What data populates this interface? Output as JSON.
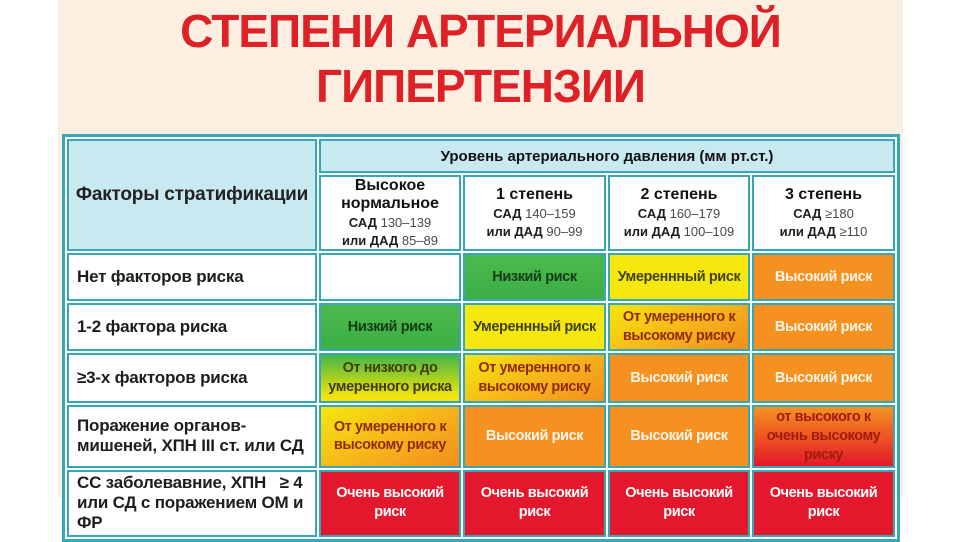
{
  "title": {
    "line1": "СТЕПЕНИ АРТЕРИАЛЬНОЙ",
    "line2": "ГИПЕРТЕНЗИИ",
    "color": "#dd2126"
  },
  "table": {
    "corner_header": "Факторы стратификации",
    "top_header": "Уровень артериального давления (мм рт.ст.)",
    "columns": [
      {
        "title": "Высокое нормальное",
        "sad_label": "САД",
        "sad_value": "130–139",
        "dad_label": "или ДАД",
        "dad_value": "85–89"
      },
      {
        "title": "1 степень",
        "sad_label": "САД",
        "sad_value": "140–159",
        "dad_label": "или ДАД",
        "dad_value": "90–99"
      },
      {
        "title": "2 степень",
        "sad_label": "САД",
        "sad_value": "160–179",
        "dad_label": "или ДАД",
        "dad_value": "100–109"
      },
      {
        "title": "3 степень",
        "sad_label": "САД",
        "sad_value": "≥180",
        "dad_label": "или ДАД",
        "dad_value": "≥110"
      }
    ],
    "rows": [
      {
        "label": "Нет факторов риска",
        "cells": [
          {
            "text": "",
            "style": "empty"
          },
          {
            "text": "Низкий риск",
            "style": "green"
          },
          {
            "text": "Умереннный риск",
            "style": "yellow"
          },
          {
            "text": "Высокий риск",
            "style": "orange"
          }
        ]
      },
      {
        "label": "1-2 фактора риска",
        "cells": [
          {
            "text": "Низкий риск",
            "style": "green"
          },
          {
            "text": "Умереннный риск",
            "style": "yellow"
          },
          {
            "text": "От умеренного к высокому риску",
            "style": "yellow-orange"
          },
          {
            "text": "Высокий риск",
            "style": "orange"
          }
        ]
      },
      {
        "label": "≥3-х факторов риска",
        "cells": [
          {
            "text": "От низкого до умеренного риска",
            "style": "green-yellow"
          },
          {
            "text": "От умеренного к высокому риску",
            "style": "yellow-orange"
          },
          {
            "text": "Высокий риск",
            "style": "orange"
          },
          {
            "text": "Высокий риск",
            "style": "orange"
          }
        ]
      },
      {
        "label": "Поражение органов-мишеней, ХПН III ст. или СД",
        "cells": [
          {
            "text": "От умеренного к высокому риску",
            "style": "yellow-orange"
          },
          {
            "text": "Высокий риск",
            "style": "orange"
          },
          {
            "text": "Высокий риск",
            "style": "orange"
          },
          {
            "text": "от высокого к очень высокому риску",
            "style": "orange-red"
          }
        ]
      },
      {
        "label": "СС заболевавние, ХПН   ≥ 4 или СД с поражением ОМ и ФР",
        "cells": [
          {
            "text": "Очень высокий риск",
            "style": "red"
          },
          {
            "text": "Очень высокий риск",
            "style": "red"
          },
          {
            "text": "Очень высокий риск",
            "style": "red"
          },
          {
            "text": "Очень высокий риск",
            "style": "red"
          }
        ]
      }
    ]
  },
  "colors": {
    "page_background": "#ffffff",
    "content_background": "#fcefe1",
    "title_red": "#dd2126",
    "table_border_teal": "#34a9b5",
    "header_blue": "#c8e9ef",
    "risk_green": "#41b449",
    "risk_yellow": "#f6e70e",
    "risk_orange": "#f59120",
    "risk_red": "#e4182c"
  },
  "chart_data": {
    "type": "table",
    "title": "СТЕПЕНИ АРТЕРИАЛЬНОЙ ГИПЕРТЕНЗИИ",
    "column_headers": [
      "Факторы стратификации",
      "Высокое нормальное САД 130–139 или ДАД 85–89",
      "1 степень САД 140–159 или ДАД 90–99",
      "2 степень САД 160–179 или ДАД 100–109",
      "3 степень САД ≥180 или ДАД ≥110"
    ],
    "group_header": "Уровень артериального давления (мм рт.ст.)",
    "rows": [
      [
        "Нет факторов риска",
        "",
        "Низкий риск",
        "Умереннный риск",
        "Высокий риск"
      ],
      [
        "1-2 фактора риска",
        "Низкий риск",
        "Умереннный риск",
        "От умеренного к высокому риску",
        "Высокий риск"
      ],
      [
        "≥3-х факторов риска",
        "От низкого до умеренного риска",
        "От умеренного к высокому риску",
        "Высокий риск",
        "Высокий риск"
      ],
      [
        "Поражение органов-мишеней, ХПН III ст. или СД",
        "От умеренного к высокому риску",
        "Высокий риск",
        "Высокий риск",
        "от высокого к очень высокому риску"
      ],
      [
        "СС заболевавние, ХПН ≥ 4 или СД с поражением ОМ и ФР",
        "Очень высокий риск",
        "Очень высокий риск",
        "Очень высокий риск",
        "Очень высокий риск"
      ]
    ]
  }
}
